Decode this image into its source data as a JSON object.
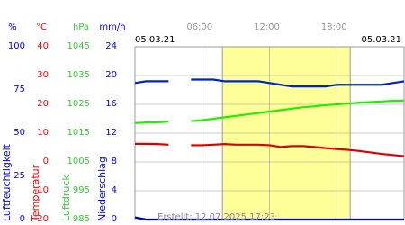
{
  "chart_data": {
    "type": "line",
    "dates": [
      "05.03.21",
      "05.03.21"
    ],
    "footer": "Erstellt: 12.07.2025 17:23",
    "xlim": [
      0,
      24
    ],
    "xticks": [
      {
        "value": 6,
        "label": "06:00"
      },
      {
        "value": 12,
        "label": "12:00"
      },
      {
        "value": 18,
        "label": "18:00"
      }
    ],
    "daylight": [
      7.8,
      19.2
    ],
    "grid": true,
    "axes": [
      {
        "unit": "%",
        "title": "Luftfeuchtigkeit",
        "color": "#0000ff",
        "lim": [
          0,
          100
        ],
        "ticks": [
          100,
          75,
          50,
          25,
          0
        ]
      },
      {
        "unit": "°C",
        "title": "Temperatur",
        "color": "#ff0000",
        "lim": [
          -20,
          40
        ],
        "ticks": [
          40,
          30,
          20,
          10,
          0,
          -10,
          -20
        ]
      },
      {
        "unit": "hPa",
        "title": "Luftdruck",
        "color": "#33cc33",
        "lim": [
          985,
          1045
        ],
        "ticks": [
          1045,
          1035,
          1025,
          1015,
          1005,
          995,
          985
        ]
      },
      {
        "unit": "mm/h",
        "title": "Niederschlag",
        "color": "#0000ff",
        "lim": [
          0,
          24
        ],
        "ticks": [
          24,
          20,
          16,
          12,
          8,
          4,
          0
        ]
      }
    ],
    "x": [
      0,
      1,
      2,
      3,
      4,
      5,
      6,
      7,
      8,
      9,
      10,
      11,
      12,
      13,
      14,
      15,
      16,
      17,
      18,
      19,
      20,
      21,
      22,
      23,
      24
    ],
    "series": [
      {
        "axis": 0,
        "color": "#0022cc",
        "values": [
          79,
          80,
          80,
          80,
          null,
          81,
          81,
          81,
          80,
          80,
          80,
          80,
          79,
          78,
          77,
          77,
          77,
          77,
          78,
          78,
          78,
          78,
          78,
          79,
          80
        ]
      },
      {
        "axis": 2,
        "color": "#22ee00",
        "values": [
          1018.5,
          1018.7,
          1018.8,
          1019,
          null,
          1019.2,
          1019.5,
          1020,
          1020.5,
          1021,
          1021.5,
          1022,
          1022.5,
          1023,
          1023.5,
          1024,
          1024.3,
          1024.7,
          1025,
          1025.3,
          1025.6,
          1025.8,
          1026,
          1026.2,
          1026.3
        ]
      },
      {
        "axis": 1,
        "color": "#dd0000",
        "values": [
          6.3,
          6.3,
          6.2,
          6,
          null,
          5.8,
          5.8,
          6,
          6.2,
          6,
          6,
          6,
          5.8,
          5.2,
          5.5,
          5.5,
          5.2,
          4.8,
          4.5,
          4.2,
          3.8,
          3.3,
          2.8,
          2.4,
          2
        ]
      },
      {
        "axis": 3,
        "color": "#0000cc",
        "values": [
          0.3,
          0,
          0,
          0,
          0,
          0,
          0,
          0,
          0,
          0,
          0,
          0,
          0,
          0,
          0,
          0,
          0,
          0,
          0,
          0,
          0,
          0,
          0,
          0,
          0
        ]
      }
    ]
  }
}
